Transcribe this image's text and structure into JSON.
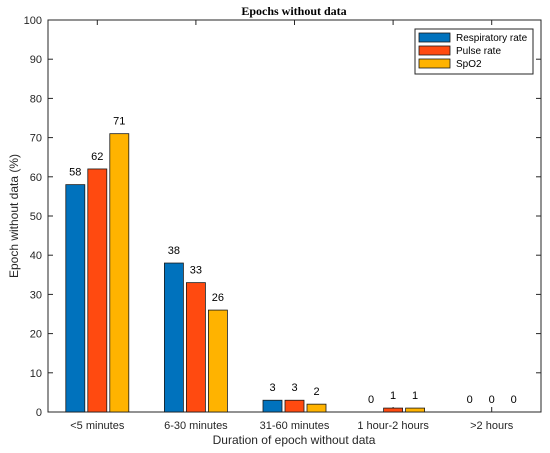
{
  "chart_data": {
    "type": "bar",
    "title": "Epochs without data",
    "xlabel": "Duration of epoch without data",
    "ylabel": "Epoch without data (%)",
    "ylim": [
      0,
      100
    ],
    "yticks": [
      0,
      10,
      20,
      30,
      40,
      50,
      60,
      70,
      80,
      90,
      100
    ],
    "categories": [
      "<5 minutes",
      "6-30 minutes",
      "31-60 minutes",
      "1 hour-2 hours",
      ">2 hours"
    ],
    "series": [
      {
        "name": "Respiratory rate",
        "color": "#0072BD",
        "values": [
          58,
          38,
          3,
          0,
          0
        ]
      },
      {
        "name": "Pulse rate",
        "color": "#FF4A10",
        "values": [
          62,
          33,
          3,
          1,
          0
        ]
      },
      {
        "name": "SpO2",
        "color": "#FFB300",
        "values": [
          71,
          26,
          2,
          1,
          0
        ]
      }
    ],
    "legend_position": "top-right",
    "grid": false
  }
}
